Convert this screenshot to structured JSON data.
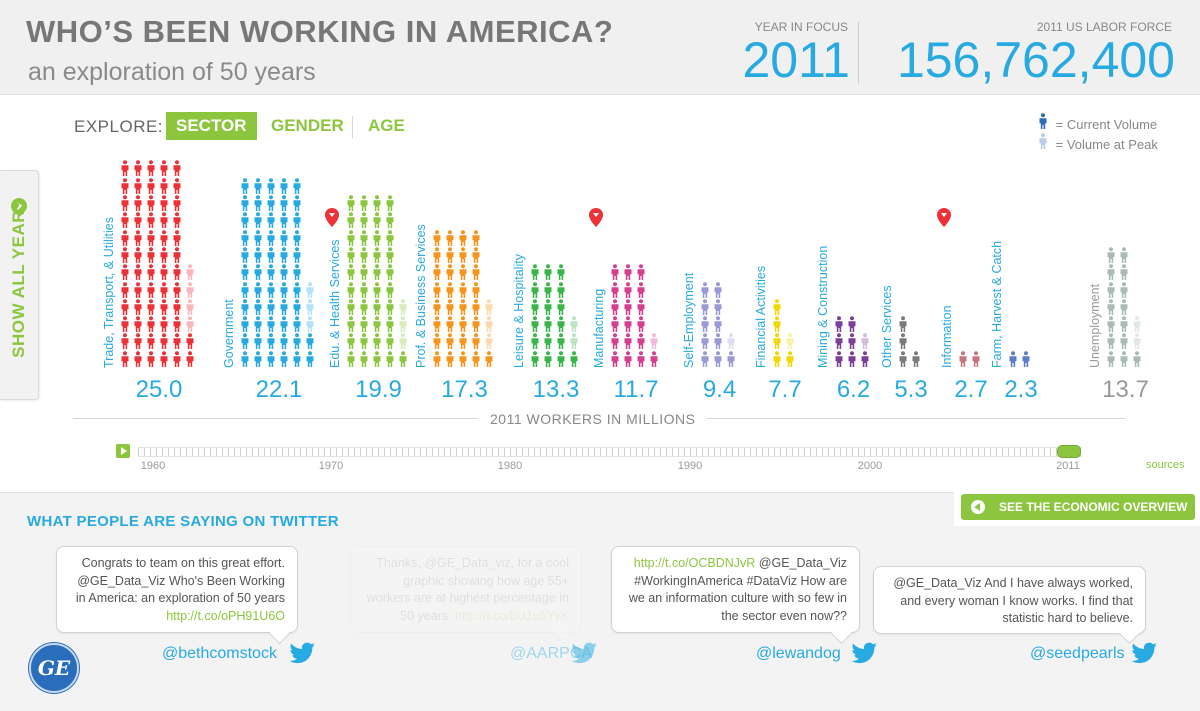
{
  "header": {
    "title": "WHO’S BEEN WORKING IN AMERICA?",
    "subtitle": "an exploration of 50 years",
    "year_in_focus_label": "YEAR IN FOCUS",
    "year_in_focus_value": "2011",
    "labor_force_label": "2011 US LABOR FORCE",
    "labor_force_value": "156,762,400"
  },
  "explore": {
    "label": "EXPLORE:",
    "tabs": [
      {
        "label": "SECTOR",
        "active": true
      },
      {
        "label": "GENDER",
        "active": false
      },
      {
        "label": "AGE",
        "active": false
      }
    ]
  },
  "legend": {
    "current": "= Current Volume",
    "peak": "= Volume at Peak"
  },
  "show_all_years": "SHOW ALL YEARS",
  "chart_data": {
    "type": "pictograph",
    "xlabel": "2011 WORKERS IN MILLIONS",
    "year": 2011,
    "categories": [
      "Trade, Transport, & Utilities",
      "Government",
      "Edu. & Health Services",
      "Prof. & Business Services",
      "Leisure & Hospitality",
      "Manufacturing",
      "Self-Employment",
      "Financial Activities",
      "Mining & Construction",
      "Other Services",
      "Information",
      "Farm, Harvest & Catch",
      "Unemployment"
    ],
    "values": [
      "25.0",
      "22.1",
      "19.9",
      "17.3",
      "13.3",
      "11.7",
      "9.4",
      "7.7",
      "6.2",
      "5.3",
      "2.7",
      "2.3",
      "13.7"
    ],
    "peak_marker": [
      false,
      false,
      true,
      false,
      false,
      true,
      false,
      false,
      false,
      false,
      true,
      false,
      false
    ],
    "colors": [
      "#ed3237",
      "#27aae1",
      "#8cc63f",
      "#f7941d",
      "#39b54a",
      "#d63e8e",
      "#9a98d6",
      "#f2d700",
      "#7b3f97",
      "#7a7a7a",
      "#c6737c",
      "#5b7fc2",
      "#a9bcb4"
    ],
    "label_colors": [
      "#27aae1",
      "#27aae1",
      "#27aae1",
      "#27aae1",
      "#27aae1",
      "#27aae1",
      "#27aae1",
      "#27aae1",
      "#27aae1",
      "#27aae1",
      "#27aae1",
      "#27aae1",
      "#999999"
    ],
    "value_colors": [
      "#27aae1",
      "#27aae1",
      "#27aae1",
      "#27aae1",
      "#27aae1",
      "#27aae1",
      "#27aae1",
      "#27aae1",
      "#27aae1",
      "#27aae1",
      "#27aae1",
      "#27aae1",
      "#999999"
    ]
  },
  "timeline": {
    "years": [
      "1960",
      "1970",
      "1980",
      "1990",
      "2000",
      "2011"
    ],
    "current": "2011",
    "sources": "sources"
  },
  "economic_overview": "SEE THE ECONOMIC OVERVIEW",
  "twitter": {
    "heading": "WHAT PEOPLE ARE SAYING ON TWITTER",
    "tweets": [
      {
        "text": "Congrats to team on this great effort. @GE_Data_Viz Who's Been Working in America: an exploration of 50 years ",
        "link": "http://t.co/oPH91U6O",
        "handle": "@bethcomstock"
      },
      {
        "text": "Thanks, @GE_Data_viz, for a cool graphic showing how age 55+ workers are at highest percentage in 50 years: ",
        "link": "http://t.co/bU1u5YvK",
        "handle": "@AARPCA"
      },
      {
        "text": "",
        "link": "http://t.co/OCBDNJvR",
        "after": " @GE_Data_Viz #WorkingInAmerica #DataViz How are we an information culture with so few in the sector even now??",
        "handle": "@lewandog"
      },
      {
        "text": "@GE_Data_Viz And I have always worked, and every woman I know works. I find that statistic hard to believe.",
        "link": "",
        "handle": "@seedpearls"
      }
    ]
  },
  "logo": "GE"
}
